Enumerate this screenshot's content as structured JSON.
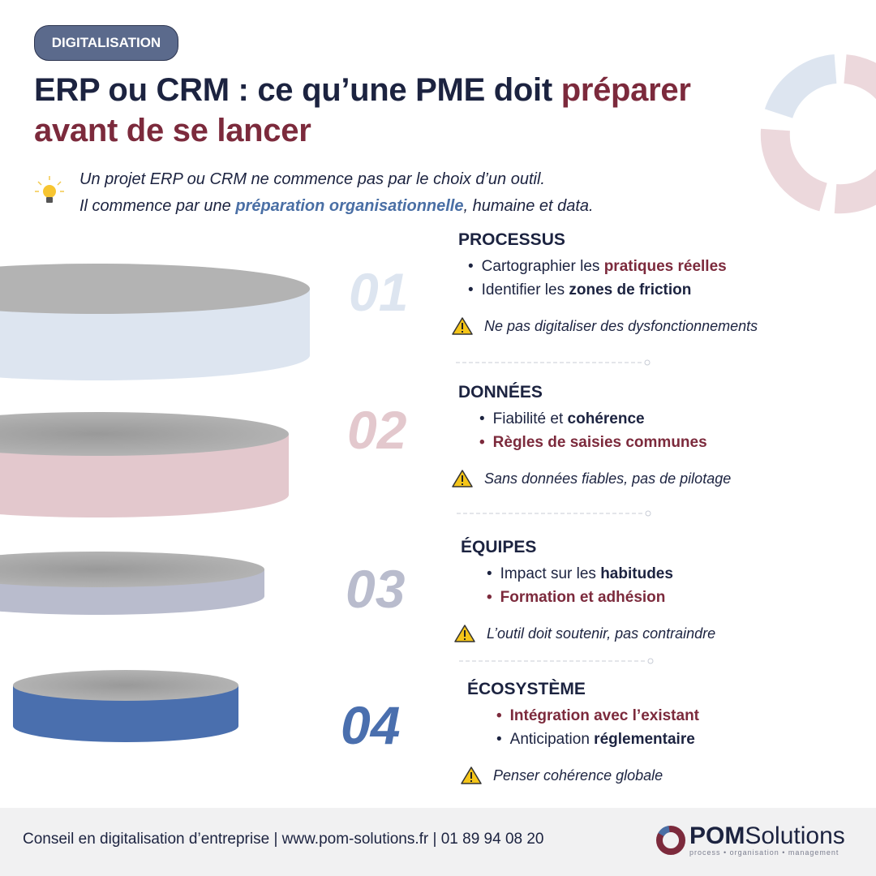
{
  "badge": "DIGITALISATION",
  "title": {
    "part1": "ERP ou CRM : ce qu’une PME doit ",
    "accent1": "préparer",
    "accent2": "avant de se lancer"
  },
  "intro": {
    "line1": "Un projet ERP ou CRM ne commence pas par le choix d’un outil.",
    "line2_pre": "Il commence par une ",
    "line2_highlight": "préparation organisationnelle",
    "line2_post": ", humaine et data."
  },
  "icons": {
    "intro": "lightbulb-icon",
    "warning": "warning-triangle-icon",
    "decor": "cycle-arrows-icon"
  },
  "colors": {
    "navy": "#1c2340",
    "accent": "#7c2a3c",
    "blue": "#4a6fa5",
    "disk1": "#dde5f0",
    "disk2": "#e3c8cd",
    "disk3": "#b9bccd",
    "disk4": "#4a6fae"
  },
  "steps": [
    {
      "num": "01",
      "title": "PROCESSUS",
      "b1_pre": "Cartographier les ",
      "b1_hl": "pratiques réelles",
      "b2_pre": "Identifier les ",
      "b2_hl": "zones de friction",
      "warning": "Ne pas digitaliser des dysfonctionnements"
    },
    {
      "num": "02",
      "title": "DONNÉES",
      "b1_pre": "Fiabilité et ",
      "b1_hl": "cohérence",
      "b2": "Règles de saisies communes",
      "warning": "Sans données fiables, pas de pilotage"
    },
    {
      "num": "03",
      "title": "ÉQUIPES",
      "b1_pre": "Impact sur les ",
      "b1_hl": "habitudes",
      "b2": "Formation et adhésion",
      "warning": "L’outil doit soutenir, pas contraindre"
    },
    {
      "num": "04",
      "title": "ÉCOSYSTÈME",
      "b1": "Intégration avec l’existant",
      "b2_pre": "Anticipation ",
      "b2_hl": "réglementaire",
      "warning": "Penser cohérence globale"
    }
  ],
  "footer": {
    "text": "Conseil en digitalisation d’entreprise | www.pom-solutions.fr | 01 89 94 08 20",
    "logo_bold": "POM",
    "logo_rest": "Solutions",
    "logo_tagline": "process • organisation • management"
  }
}
